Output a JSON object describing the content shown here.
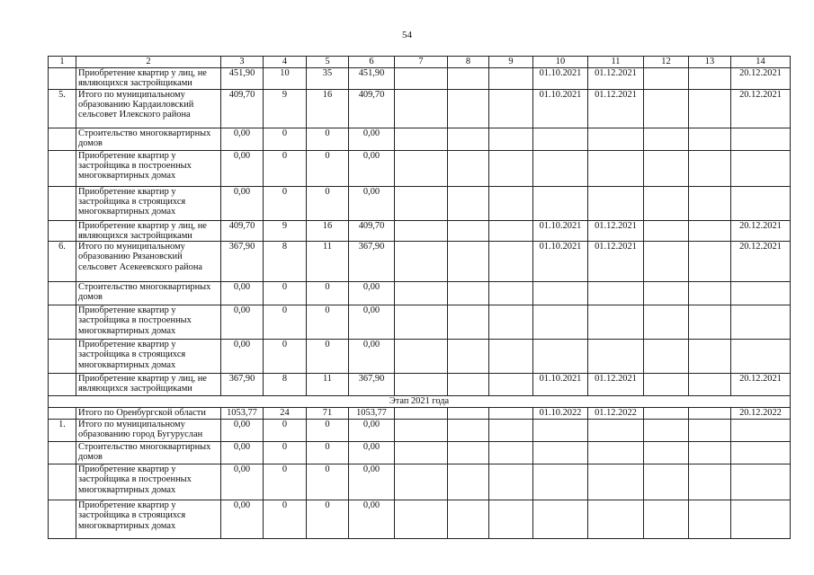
{
  "page_number": "54",
  "table": {
    "header": [
      "1",
      "2",
      "3",
      "4",
      "5",
      "6",
      "7",
      "8",
      "9",
      "10",
      "11",
      "12",
      "13",
      "14"
    ],
    "rows": [
      {
        "cells": [
          "",
          "Приобретение квартир у лиц, не являющихся застройщиками",
          "451,90",
          "10",
          "35",
          "451,90",
          "",
          "",
          "",
          "01.10.2021",
          "01.12.2021",
          "",
          "",
          "20.12.2021"
        ]
      },
      {
        "cells": [
          "5.",
          "Итого по муниципальному образованию Кардаиловский сельсовет Илекского района",
          "409,70",
          "9",
          "16",
          "409,70",
          "",
          "",
          "",
          "01.10.2021",
          "01.12.2021",
          "",
          "",
          "20.12.2021"
        ]
      },
      {
        "cells": [
          "",
          "Строительство многоквартирных домов",
          "0,00",
          "0",
          "0",
          "0,00",
          "",
          "",
          "",
          "",
          "",
          "",
          "",
          ""
        ]
      },
      {
        "cells": [
          "",
          "Приобретение квартир у застройщика в построенных многоквартирных домах",
          "0,00",
          "0",
          "0",
          "0,00",
          "",
          "",
          "",
          "",
          "",
          "",
          "",
          ""
        ]
      },
      {
        "cells": [
          "",
          "Приобретение квартир у застройщика в строящихся многоквартирных домах",
          "0,00",
          "0",
          "0",
          "0,00",
          "",
          "",
          "",
          "",
          "",
          "",
          "",
          ""
        ]
      },
      {
        "cells": [
          "",
          "Приобретение квартир у лиц, не являющихся застройщиками",
          "409,70",
          "9",
          "16",
          "409,70",
          "",
          "",
          "",
          "01.10.2021",
          "01.12.2021",
          "",
          "",
          "20.12.2021"
        ]
      },
      {
        "cells": [
          "6.",
          "Итого по муниципальному образованию Рязановский сельсовет Асекеевского района",
          "367,90",
          "8",
          "11",
          "367,90",
          "",
          "",
          "",
          "01.10.2021",
          "01.12.2021",
          "",
          "",
          "20.12.2021"
        ]
      },
      {
        "cells": [
          "",
          "Строительство многоквартирных домов",
          "0,00",
          "0",
          "0",
          "0,00",
          "",
          "",
          "",
          "",
          "",
          "",
          "",
          ""
        ]
      },
      {
        "cells": [
          "",
          "Приобретение квартир у застройщика в построенных многоквартирных домах",
          "0,00",
          "0",
          "0",
          "0,00",
          "",
          "",
          "",
          "",
          "",
          "",
          "",
          ""
        ]
      },
      {
        "cells": [
          "",
          "Приобретение квартир у застройщика в строящихся многоквартирных домах",
          "0,00",
          "0",
          "0",
          "0,00",
          "",
          "",
          "",
          "",
          "",
          "",
          "",
          ""
        ]
      },
      {
        "cells": [
          "",
          "Приобретение квартир у лиц, не являющихся застройщиками",
          "367,90",
          "8",
          "11",
          "367,90",
          "",
          "",
          "",
          "01.10.2021",
          "01.12.2021",
          "",
          "",
          "20.12.2021"
        ]
      },
      {
        "stage": "Этап 2021 года"
      },
      {
        "cells": [
          "",
          "Итого по Оренбургской области",
          "1053,77",
          "24",
          "71",
          "1053,77",
          "",
          "",
          "",
          "01.10.2022",
          "01.12.2022",
          "",
          "",
          "20.12.2022"
        ]
      },
      {
        "cells": [
          "1.",
          "Итого по муниципальному образованию город Бугуруслан",
          "0,00",
          "0",
          "0",
          "0,00",
          "",
          "",
          "",
          "",
          "",
          "",
          "",
          ""
        ]
      },
      {
        "cells": [
          "",
          "Строительство многоквартирных домов",
          "0,00",
          "0",
          "0",
          "0,00",
          "",
          "",
          "",
          "",
          "",
          "",
          "",
          ""
        ]
      },
      {
        "cells": [
          "",
          "Приобретение квартир у застройщика в построенных многоквартирных домах",
          "0,00",
          "0",
          "0",
          "0,00",
          "",
          "",
          "",
          "",
          "",
          "",
          "",
          ""
        ]
      },
      {
        "cells": [
          "",
          "Приобретение квартир у застройщика в строящихся многоквартирных домах",
          "0,00",
          "0",
          "0",
          "0,00",
          "",
          "",
          "",
          "",
          "",
          "",
          "",
          ""
        ]
      }
    ]
  }
}
